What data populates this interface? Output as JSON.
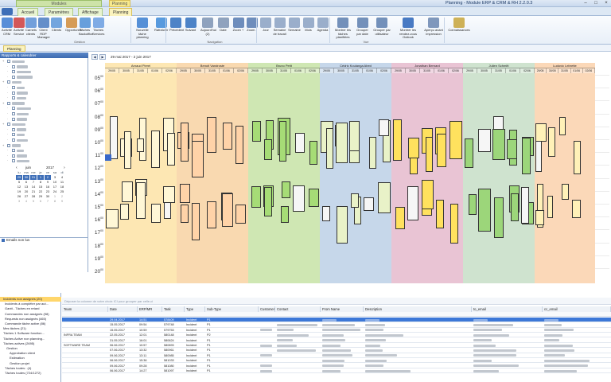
{
  "title_bar": {
    "title": "Planning - Module ERP & CRM & RH 2.2.0.3",
    "group_modules": "Modules",
    "group_planning": "Planning"
  },
  "tabs": [
    {
      "label": "Accueil",
      "kind": "mod"
    },
    {
      "label": "Paramètres",
      "kind": "mod"
    },
    {
      "label": "Affichage",
      "kind": "mod"
    },
    {
      "label": "Planning",
      "kind": "active"
    }
  ],
  "ribbon": {
    "buttons": [
      {
        "label": "Activité CRM",
        "color": "#3c7bd1"
      },
      {
        "label": "Activité Service",
        "color": "#cc3b3b"
      },
      {
        "label": "Carnets clients",
        "color": "#5a8fd5"
      },
      {
        "label": "Client RDP Manager",
        "color": "#4a7bc0"
      },
      {
        "label": "Clients",
        "color": "#5c96d8"
      },
      {
        "label": "Opportunité",
        "color": "#d08c3a"
      },
      {
        "label": "Tâches Backoffice",
        "color": "#4d8fd6"
      },
      {
        "label": "Tâches Services",
        "color": "#6a9ee0"
      },
      {
        "label": "Nouvelle tâche planning",
        "color": "#3a7ed0"
      },
      {
        "label": "Rafraîchir",
        "color": "#3c8ad8"
      },
      {
        "label": "Précédent",
        "color": "#2f6fbd"
      },
      {
        "label": "Suivant",
        "color": "#2f6fbd"
      },
      {
        "label": "Aujourd'hui (2)",
        "color": "#7c93b3"
      },
      {
        "label": "Date",
        "color": "#7c93b3"
      },
      {
        "label": "Zoom +",
        "color": "#567ab0"
      },
      {
        "label": "Zoom -",
        "color": "#567ab0"
      },
      {
        "label": "Jour",
        "color": "#8aa1c2"
      },
      {
        "label": "Semaine de travail",
        "color": "#8aa1c2"
      },
      {
        "label": "Semaine",
        "color": "#8aa1c2"
      },
      {
        "label": "Mois",
        "color": "#8aa1c2"
      },
      {
        "label": "Agenda",
        "color": "#8aa1c2"
      },
      {
        "label": "Montrer les tâches planifiées",
        "color": "#5c7eae"
      },
      {
        "label": "Grouper par date",
        "color": "#5c7eae"
      },
      {
        "label": "Grouper par utilisateur",
        "color": "#5c7eae"
      },
      {
        "label": "Montrer les rendez-vous Outlook",
        "color": "#2a64b8"
      },
      {
        "label": "Aperçu avant impression",
        "color": "#6a86b0"
      },
      {
        "label": "Connaissances",
        "color": "#c7a43a"
      }
    ],
    "groups": {
      "gestion": "Gestion",
      "navigation": "Navigation",
      "vue": "Vue"
    }
  },
  "subbar": {
    "tab": "Planning"
  },
  "left_panel": {
    "header": "Rapports & calendrier",
    "calendar": {
      "month": "juin",
      "year": "2017",
      "weekdays": [
        "lu",
        "ma",
        "me",
        "je",
        "ve",
        "sa",
        "di"
      ],
      "rows": [
        [
          "29",
          "30",
          "31",
          "1",
          "2",
          "3",
          "4"
        ],
        [
          "5",
          "6",
          "7",
          "8",
          "9",
          "10",
          "11"
        ],
        [
          "12",
          "13",
          "14",
          "15",
          "16",
          "17",
          "18"
        ],
        [
          "19",
          "20",
          "21",
          "22",
          "23",
          "24",
          "25"
        ],
        [
          "26",
          "27",
          "28",
          "29",
          "30",
          "1",
          "2"
        ],
        [
          "3",
          "4",
          "5",
          "6",
          "7",
          "8",
          "9"
        ]
      ]
    },
    "footer_item": "Emails non lus"
  },
  "planning": {
    "date_range": "29 mai 2017 - 2 juin 2017",
    "days": [
      "29/05",
      "30/05",
      "31/05",
      "01/06",
      "02/06"
    ],
    "hours": [
      "05",
      "06",
      "07",
      "08",
      "09",
      "10",
      "11",
      "12",
      "13",
      "14",
      "15",
      "16",
      "17",
      "18",
      "19",
      "20"
    ],
    "resources": [
      {
        "name": "Arnaud Pierel",
        "color": "#fde7b3",
        "appt": "#fff7d6"
      },
      {
        "name": "Benoit Vandroste",
        "color": "#f9d9b0",
        "appt": "#ffd3a8"
      },
      {
        "name": "Bruno Petit",
        "color": "#cfe7b3",
        "appt": "#a6dc76"
      },
      {
        "name": "Cédric Koulanga Abed",
        "color": "#c6d7ea",
        "appt": "#e9f2c8"
      },
      {
        "name": "Jonathan Bernard",
        "color": "#e9c4d4",
        "appt": "#ffe15e"
      },
      {
        "name": "Julien Schmitt",
        "color": "#cfe3cf",
        "appt": "#9cd67a"
      },
      {
        "name": "Ludovic Lebrette",
        "color": "#fbd8b8",
        "appt": "#fff1b8"
      }
    ]
  },
  "bottom_left": {
    "items": [
      "Incidents non assignés (20)",
      "Incidents à compléter par aut...",
      "Gantt - Tâches en retard",
      "Commandes non assignés (98)",
      "Requests non assignés (465)",
      "Commande tâche active (86)",
      "Mes tâches (21)",
      "Tâches 1 Software fonction...",
      "Tâches Active non planning...",
      "Tâches actives (2695)",
      "Gestion",
      "Approbation client",
      "Estimation",
      "Gestion projet",
      "Tâches toutes : (4)",
      "Tâches toutes (724/1272)"
    ]
  },
  "grid": {
    "group_hint": "Déposer la colonne de votre choix ICI pour grouper par celle-ci",
    "columns": [
      "Team",
      "Date",
      "ERP/MR",
      "Task",
      "Type",
      "Sub-Type",
      "Customer",
      "Contact",
      "From Name",
      "Description",
      "to_email",
      "cc_email"
    ],
    "rows": [
      {
        "team": "",
        "date": "29.04.2017",
        "erp": "14:51",
        "task": "578409",
        "type": "Incident",
        "sub": "P1",
        "sel": true
      },
      {
        "team": "",
        "date": "15.05.2017",
        "erp": "09:54",
        "task": "579748",
        "type": "Incident",
        "sub": "P1"
      },
      {
        "team": "",
        "date": "15.05.2017",
        "erp": "10:59",
        "task": "579753",
        "type": "Incident",
        "sub": "P1"
      },
      {
        "team": "INFRA TEAM",
        "date": "22.05.2017",
        "erp": "12:01",
        "task": "580148",
        "type": "Incident",
        "sub": "P2"
      },
      {
        "team": "",
        "date": "31.05.2017",
        "erp": "16:01",
        "task": "580624",
        "type": "Incident",
        "sub": "P1"
      },
      {
        "team": "SOFTWARE TEAM",
        "date": "06.06.2017",
        "erp": "10:57",
        "task": "580893",
        "type": "Incident",
        "sub": "P1"
      },
      {
        "team": "",
        "date": "07.06.2017",
        "erp": "13:32",
        "task": "580961",
        "type": "Incident",
        "sub": "P1"
      },
      {
        "team": "",
        "date": "09.06.2017",
        "erp": "13:11",
        "task": "580985",
        "type": "Incident",
        "sub": "P1"
      },
      {
        "team": "",
        "date": "06.06.2017",
        "erp": "15:36",
        "task": "581033",
        "type": "Incident",
        "sub": "P1"
      },
      {
        "team": "",
        "date": "09.06.2017",
        "erp": "09:28",
        "task": "581080",
        "type": "Incident",
        "sub": "P1"
      },
      {
        "team": "",
        "date": "06.06.2017",
        "erp": "14:27",
        "task": "581097",
        "type": "Incident",
        "sub": "P1"
      }
    ]
  }
}
